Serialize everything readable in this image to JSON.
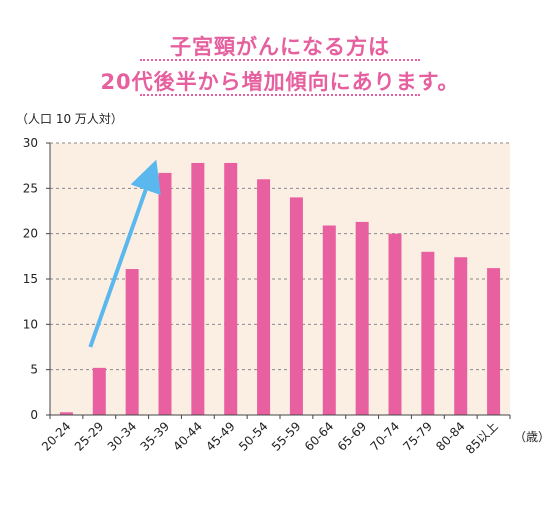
{
  "header": {
    "title_line1": "子宮頸がんになる方は",
    "title_line2": "20代後半から増加傾向にあります。"
  },
  "colors": {
    "bar": "#e8609f",
    "arrow": "#5bb8ee",
    "plot_bg": "#fbefe4",
    "title": "#e6609f"
  },
  "chart_data": {
    "type": "bar",
    "ylabel": "（人口 10 万人対）",
    "xunit": "（歳）",
    "categories": [
      "20-24",
      "25-29",
      "30-34",
      "35-39",
      "40-44",
      "45-49",
      "50-54",
      "55-59",
      "60-64",
      "65-69",
      "70-74",
      "75-79",
      "80-84",
      "85以上"
    ],
    "values": [
      0.3,
      5.2,
      16.1,
      26.7,
      27.8,
      27.8,
      26.0,
      24.0,
      20.9,
      21.3,
      20.0,
      18.0,
      17.4,
      16.2
    ],
    "ylim": [
      0,
      30
    ],
    "yticks": [
      0,
      5,
      10,
      15,
      20,
      25,
      30
    ],
    "grid": true,
    "annotation": {
      "type": "arrow",
      "from_category": "25-29",
      "from_value": 7.5,
      "to_category": "35-39",
      "to_value": 26.5
    }
  }
}
